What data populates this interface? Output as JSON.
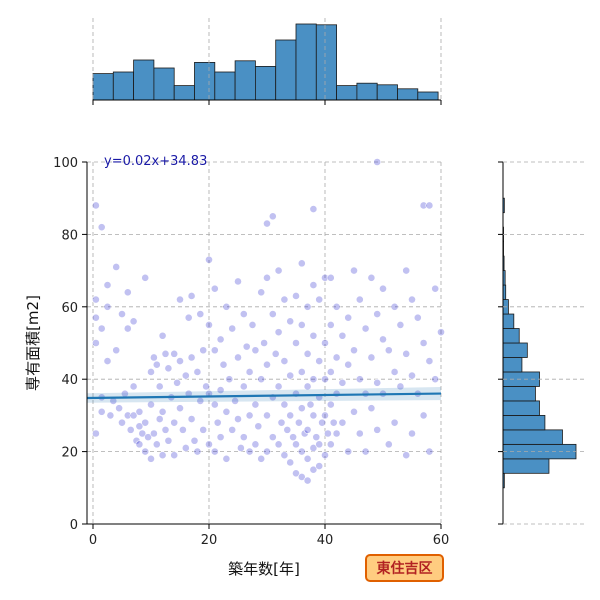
{
  "chart_data": {
    "type": "scatter",
    "xlabel": "築年数[年]",
    "ylabel": "専有面積[m2]",
    "xlim": [
      0,
      60
    ],
    "ylim": [
      0,
      100
    ],
    "x_ticks": [
      0,
      20,
      40,
      60
    ],
    "y_ticks": [
      0,
      20,
      40,
      60,
      80,
      100
    ],
    "grid": true,
    "annotation": "y=0.02x+34.83",
    "regression": {
      "slope": 0.02,
      "intercept": 34.83
    },
    "badge": "東住吉区",
    "colors": {
      "points": "#2222cc",
      "regression_line": "#1f77b4",
      "bars": "#4a90c4",
      "badge_fill": "#ffcc80",
      "badge_border": "#e06000",
      "badge_text": "#b22222"
    },
    "top_histogram": {
      "bin_edges": [
        0,
        3.5,
        7,
        10.5,
        14,
        17.5,
        21,
        24.5,
        28,
        31.5,
        35,
        38.5,
        42,
        45.5,
        49,
        52.5,
        56,
        59.5
      ],
      "counts": [
        33,
        35,
        50,
        40,
        18,
        47,
        35,
        49,
        42,
        75,
        95,
        94,
        18,
        21,
        19,
        14,
        10
      ]
    },
    "right_histogram": {
      "bin_edges": [
        10,
        14,
        18,
        22,
        26,
        30,
        34,
        38,
        42,
        46,
        50,
        54,
        58,
        62,
        66,
        70,
        74,
        78,
        82,
        86,
        90
      ],
      "counts": [
        5,
        170,
        270,
        220,
        155,
        135,
        120,
        135,
        70,
        90,
        60,
        40,
        20,
        10,
        8,
        4,
        2,
        2,
        0,
        5
      ]
    },
    "points": [
      [
        0.5,
        88
      ],
      [
        0.5,
        62
      ],
      [
        0.5,
        57
      ],
      [
        0.5,
        50
      ],
      [
        0.5,
        25
      ],
      [
        1.5,
        82
      ],
      [
        1.5,
        54
      ],
      [
        1.5,
        35
      ],
      [
        1.5,
        31
      ],
      [
        2.5,
        66
      ],
      [
        2.5,
        60
      ],
      [
        2.5,
        45
      ],
      [
        3,
        30
      ],
      [
        3.5,
        34
      ],
      [
        4,
        71
      ],
      [
        4,
        48
      ],
      [
        4.5,
        32
      ],
      [
        5,
        58
      ],
      [
        5,
        28
      ],
      [
        5.5,
        36
      ],
      [
        6,
        64
      ],
      [
        6,
        54
      ],
      [
        6,
        30
      ],
      [
        6.5,
        26
      ],
      [
        7,
        56
      ],
      [
        7,
        38
      ],
      [
        7,
        30
      ],
      [
        7.5,
        23
      ],
      [
        8,
        31
      ],
      [
        8,
        27
      ],
      [
        8,
        22
      ],
      [
        8.5,
        25
      ],
      [
        9,
        68
      ],
      [
        9,
        28
      ],
      [
        9,
        20
      ],
      [
        9.5,
        24
      ],
      [
        10,
        42
      ],
      [
        10,
        33
      ],
      [
        10,
        18
      ],
      [
        10.5,
        46
      ],
      [
        10.5,
        25
      ],
      [
        11,
        44
      ],
      [
        11,
        22
      ],
      [
        11.5,
        38
      ],
      [
        11.5,
        29
      ],
      [
        12,
        52
      ],
      [
        12,
        31
      ],
      [
        12,
        19
      ],
      [
        12.5,
        47
      ],
      [
        12.5,
        26
      ],
      [
        13,
        43
      ],
      [
        13,
        23
      ],
      [
        13.5,
        35
      ],
      [
        14,
        47
      ],
      [
        14,
        28
      ],
      [
        14,
        19
      ],
      [
        14.5,
        39
      ],
      [
        15,
        62
      ],
      [
        15,
        45
      ],
      [
        15,
        32
      ],
      [
        15.5,
        26
      ],
      [
        16,
        41
      ],
      [
        16,
        21
      ],
      [
        16.5,
        57
      ],
      [
        16.5,
        36
      ],
      [
        17,
        63
      ],
      [
        17,
        46
      ],
      [
        17,
        29
      ],
      [
        17.5,
        23
      ],
      [
        18,
        42
      ],
      [
        18,
        20
      ],
      [
        18.5,
        58
      ],
      [
        18.5,
        34
      ],
      [
        19,
        48
      ],
      [
        19,
        26
      ],
      [
        19.5,
        38
      ],
      [
        20,
        73
      ],
      [
        20,
        55
      ],
      [
        20,
        36
      ],
      [
        20,
        22
      ],
      [
        21,
        65
      ],
      [
        21,
        48
      ],
      [
        21,
        33
      ],
      [
        21,
        20
      ],
      [
        21.5,
        28
      ],
      [
        22,
        51
      ],
      [
        22,
        37
      ],
      [
        22,
        24
      ],
      [
        22.5,
        44
      ],
      [
        23,
        60
      ],
      [
        23,
        31
      ],
      [
        23,
        18
      ],
      [
        23.5,
        40
      ],
      [
        24,
        54
      ],
      [
        24,
        26
      ],
      [
        24.5,
        34
      ],
      [
        25,
        67
      ],
      [
        25,
        46
      ],
      [
        25,
        29
      ],
      [
        25.5,
        21
      ],
      [
        26,
        58
      ],
      [
        26,
        38
      ],
      [
        26,
        24
      ],
      [
        26.5,
        49
      ],
      [
        27,
        42
      ],
      [
        27,
        30
      ],
      [
        27,
        20
      ],
      [
        27.5,
        55
      ],
      [
        28,
        48
      ],
      [
        28,
        33
      ],
      [
        28,
        22
      ],
      [
        28.5,
        27
      ],
      [
        29,
        64
      ],
      [
        29,
        40
      ],
      [
        29,
        18
      ],
      [
        29.5,
        50
      ],
      [
        30,
        83
      ],
      [
        30,
        68
      ],
      [
        30,
        44
      ],
      [
        30,
        30
      ],
      [
        30,
        20
      ],
      [
        31,
        85
      ],
      [
        31,
        58
      ],
      [
        31,
        35
      ],
      [
        31,
        24
      ],
      [
        31.5,
        47
      ],
      [
        32,
        70
      ],
      [
        32,
        53
      ],
      [
        32,
        38
      ],
      [
        32,
        22
      ],
      [
        32.5,
        28
      ],
      [
        33,
        62
      ],
      [
        33,
        45
      ],
      [
        33,
        33
      ],
      [
        33,
        19
      ],
      [
        33.5,
        26
      ],
      [
        34,
        56
      ],
      [
        34,
        41
      ],
      [
        34,
        30
      ],
      [
        34,
        17
      ],
      [
        34.5,
        24
      ],
      [
        35,
        63
      ],
      [
        35,
        50
      ],
      [
        35,
        36
      ],
      [
        35,
        22
      ],
      [
        35,
        14
      ],
      [
        35.5,
        28
      ],
      [
        36,
        72
      ],
      [
        36,
        55
      ],
      [
        36,
        42
      ],
      [
        36,
        32
      ],
      [
        36,
        20
      ],
      [
        36,
        13
      ],
      [
        36.5,
        25
      ],
      [
        37,
        60
      ],
      [
        37,
        47
      ],
      [
        37,
        38
      ],
      [
        37,
        26
      ],
      [
        37,
        18
      ],
      [
        37,
        12
      ],
      [
        37.5,
        33
      ],
      [
        38,
        87
      ],
      [
        38,
        66
      ],
      [
        38,
        52
      ],
      [
        38,
        40
      ],
      [
        38,
        30
      ],
      [
        38,
        21
      ],
      [
        38,
        15
      ],
      [
        38.5,
        24
      ],
      [
        39,
        62
      ],
      [
        39,
        45
      ],
      [
        39,
        35
      ],
      [
        39,
        22
      ],
      [
        39,
        16
      ],
      [
        39.5,
        28
      ],
      [
        40,
        68
      ],
      [
        40,
        50
      ],
      [
        40,
        40
      ],
      [
        40,
        30
      ],
      [
        40,
        19
      ],
      [
        40.5,
        25
      ],
      [
        41,
        68
      ],
      [
        41,
        55
      ],
      [
        41,
        42
      ],
      [
        41,
        33
      ],
      [
        41,
        22
      ],
      [
        41.5,
        28
      ],
      [
        42,
        60
      ],
      [
        42,
        46
      ],
      [
        42,
        36
      ],
      [
        42,
        25
      ],
      [
        43,
        52
      ],
      [
        43,
        39
      ],
      [
        43,
        28
      ],
      [
        44,
        57
      ],
      [
        44,
        44
      ],
      [
        44,
        20
      ],
      [
        45,
        70
      ],
      [
        45,
        48
      ],
      [
        45,
        31
      ],
      [
        46,
        62
      ],
      [
        46,
        40
      ],
      [
        46,
        25
      ],
      [
        47,
        54
      ],
      [
        47,
        36
      ],
      [
        47,
        20
      ],
      [
        48,
        68
      ],
      [
        48,
        46
      ],
      [
        48,
        32
      ],
      [
        49,
        58
      ],
      [
        49,
        39
      ],
      [
        49,
        26
      ],
      [
        50,
        65
      ],
      [
        50,
        51
      ],
      [
        50,
        36
      ],
      [
        51,
        48
      ],
      [
        51,
        22
      ],
      [
        52,
        60
      ],
      [
        52,
        42
      ],
      [
        52,
        28
      ],
      [
        53,
        55
      ],
      [
        53,
        38
      ],
      [
        54,
        70
      ],
      [
        54,
        47
      ],
      [
        54,
        19
      ],
      [
        55,
        62
      ],
      [
        55,
        41
      ],
      [
        55,
        25
      ],
      [
        56,
        57
      ],
      [
        56,
        36
      ],
      [
        57,
        88
      ],
      [
        57,
        50
      ],
      [
        57,
        30
      ],
      [
        58,
        88
      ],
      [
        58,
        45
      ],
      [
        58,
        20
      ],
      [
        59,
        65
      ],
      [
        59,
        40
      ],
      [
        60,
        53
      ],
      [
        49,
        100
      ]
    ]
  }
}
